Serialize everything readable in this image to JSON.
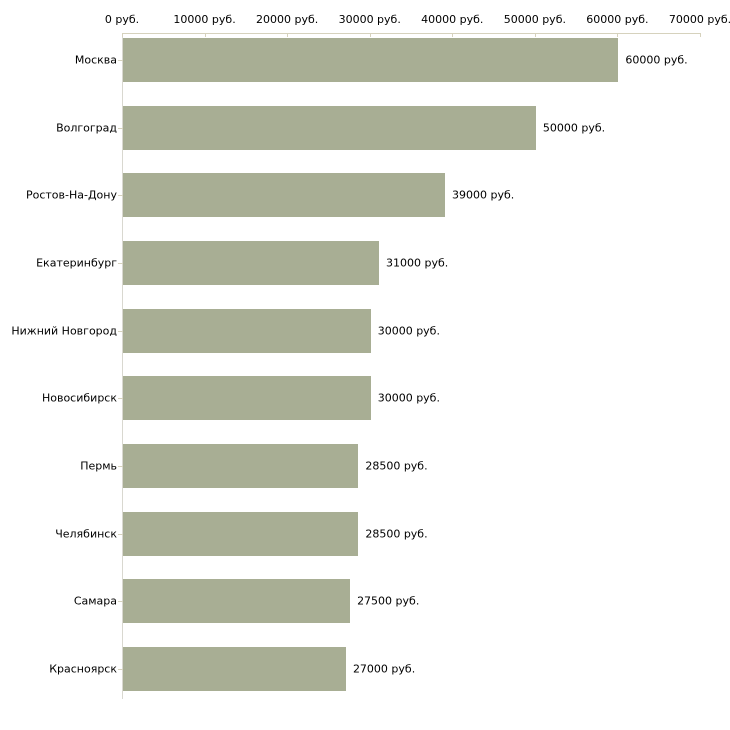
{
  "chart_data": {
    "type": "bar",
    "orientation": "horizontal",
    "title": "",
    "xlabel": "",
    "ylabel": "",
    "unit": "руб.",
    "categories": [
      "Москва",
      "Волгоград",
      "Ростов-На-Дону",
      "Екатеринбург",
      "Нижний Новгород",
      "Новосибирск",
      "Пермь",
      "Челябинск",
      "Самара",
      "Красноярск"
    ],
    "values": [
      60000,
      50000,
      39000,
      31000,
      30000,
      30000,
      28500,
      28500,
      27500,
      27000
    ],
    "value_labels": [
      "60000 руб.",
      "50000 руб.",
      "39000 руб.",
      "31000 руб.",
      "30000 руб.",
      "30000 руб.",
      "28500 руб.",
      "28500 руб.",
      "27500 руб.",
      "27000 руб."
    ],
    "x_ticks": [
      0,
      10000,
      20000,
      30000,
      40000,
      50000,
      60000,
      70000
    ],
    "x_tick_labels": [
      "0 руб.",
      "10000 руб.",
      "20000 руб.",
      "30000 руб.",
      "40000 руб.",
      "50000 руб.",
      "60000 руб.",
      "70000 руб."
    ],
    "xlim": [
      0,
      70000
    ],
    "axis_position": "top",
    "grid": false,
    "legend": null,
    "colors": {
      "bar": "#a8ae94",
      "axis": "#d6d2bd",
      "y_axis": "#d9d8d0",
      "text": "#000000",
      "background": "#ffffff"
    }
  }
}
